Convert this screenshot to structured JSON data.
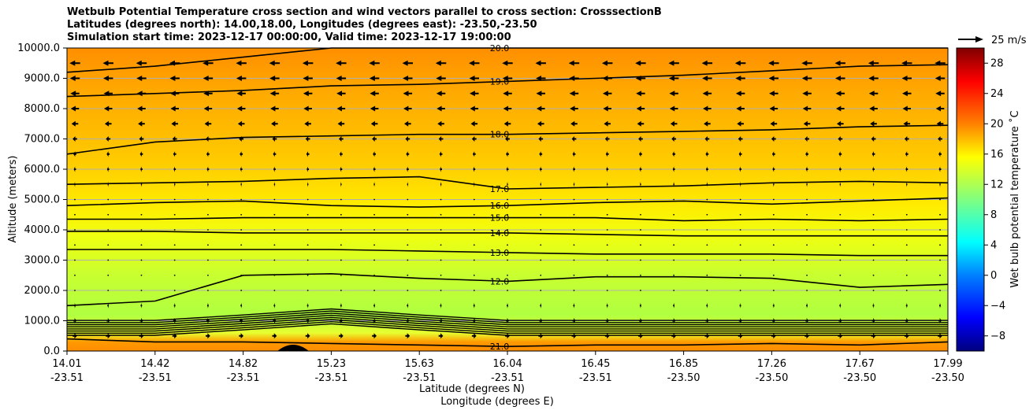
{
  "title_lines": [
    "Wetbulb Potential Temperature cross section and wind vectors parallel to cross section: CrosssectionB",
    "Latitudes (degrees north): 14.00,18.00, Longitudes (degrees east): -23.50,-23.50",
    "Simulation start time: 2023-12-17 00:00:00, Valid time: 2023-12-17 19:00:00"
  ],
  "chart_data": {
    "type": "heatmap",
    "subtype": "cross-section contour with wind vectors",
    "ylabel": "Altitude (meters)",
    "xlabel_1": "Latitude (degrees N)",
    "xlabel_2": "Longitude (degrees E)",
    "ylim": [
      0,
      10000
    ],
    "y_ticks": [
      "0.0",
      "1000.0",
      "2000.0",
      "3000.0",
      "4000.0",
      "5000.0",
      "6000.0",
      "7000.0",
      "8000.0",
      "9000.0",
      "10000.0"
    ],
    "x_ticks": [
      {
        "lat": "14.01",
        "lon": "-23.51"
      },
      {
        "lat": "14.42",
        "lon": "-23.51"
      },
      {
        "lat": "14.82",
        "lon": "-23.51"
      },
      {
        "lat": "15.23",
        "lon": "-23.51"
      },
      {
        "lat": "15.63",
        "lon": "-23.51"
      },
      {
        "lat": "16.04",
        "lon": "-23.51"
      },
      {
        "lat": "16.45",
        "lon": "-23.51"
      },
      {
        "lat": "16.85",
        "lon": "-23.50"
      },
      {
        "lat": "17.26",
        "lon": "-23.50"
      },
      {
        "lat": "17.67",
        "lon": "-23.50"
      },
      {
        "lat": "17.99",
        "lon": "-23.50"
      }
    ],
    "grid": true,
    "colorbar": {
      "label": "Wet bulb potential temperature ˚C",
      "range": [
        -10,
        30
      ],
      "ticks": [
        "−8",
        "−4",
        "0",
        "4",
        "8",
        "12",
        "16",
        "20",
        "24",
        "28"
      ],
      "colormap": "jet"
    },
    "quiver_key": {
      "label": "25 m/s"
    },
    "contours": [
      {
        "value": 20.0,
        "label": "20.0",
        "y_at_lat": [
          9200,
          9400,
          9700,
          10000,
          10000,
          10000,
          10000,
          10000,
          10000,
          10000,
          10000
        ]
      },
      {
        "value": 19.0,
        "label": "19.0",
        "y_at_lat": [
          8400,
          8500,
          8600,
          8750,
          8800,
          8900,
          9000,
          9100,
          9250,
          9400,
          9450
        ]
      },
      {
        "value": 18.0,
        "label": "18.0",
        "y_at_lat": [
          6500,
          6900,
          7050,
          7100,
          7150,
          7150,
          7200,
          7250,
          7300,
          7400,
          7450
        ]
      },
      {
        "value": 17.0,
        "label": "17.0",
        "y_at_lat": [
          5500,
          5550,
          5600,
          5700,
          5750,
          5350,
          5400,
          5450,
          5550,
          5600,
          5550
        ]
      },
      {
        "value": 16.0,
        "label": "16.0",
        "y_at_lat": [
          4800,
          4900,
          4950,
          4800,
          4750,
          4800,
          4900,
          4950,
          4850,
          4950,
          5050
        ]
      },
      {
        "value": 15.0,
        "label": "15.0",
        "y_at_lat": [
          4350,
          4350,
          4400,
          4400,
          4400,
          4400,
          4400,
          4300,
          4350,
          4300,
          4350
        ]
      },
      {
        "value": 14.0,
        "label": "14.0",
        "y_at_lat": [
          3950,
          3950,
          3900,
          3900,
          3900,
          3900,
          3850,
          3800,
          3800,
          3800,
          3800
        ]
      },
      {
        "value": 13.0,
        "label": "13.0",
        "y_at_lat": [
          3350,
          3350,
          3350,
          3350,
          3300,
          3250,
          3200,
          3200,
          3200,
          3150,
          3150
        ]
      },
      {
        "value": 12.0,
        "label": "12.0",
        "y_at_lat": [
          1500,
          1650,
          2500,
          2550,
          2400,
          2300,
          2450,
          2450,
          2400,
          2100,
          2200
        ]
      },
      {
        "value": 21.0,
        "label": "21.0",
        "y_at_lat": [
          400,
          300,
          300,
          250,
          200,
          150,
          200,
          200,
          250,
          200,
          300
        ]
      }
    ],
    "contour_labels": [
      "20.0",
      "19.0",
      "18.0",
      "17.0",
      "16.0",
      "15.0",
      "14.0",
      "13.0",
      "12.0",
      "12.0",
      "12.0",
      "13.0",
      "18.0",
      "18.0",
      "18.0",
      "21.0",
      "21.0",
      "21.0",
      "21.0",
      "21.0",
      "20.0",
      "20.0",
      "20.0",
      "20.0"
    ],
    "wind_u_ms": {
      "altitudes_m": [
        9500,
        9000,
        8500,
        8000,
        7500,
        7000,
        6500,
        6000,
        5500,
        5000,
        4500,
        4000,
        3500,
        3000,
        2500,
        2000,
        1500,
        1000,
        500
      ],
      "u_values": [
        -14,
        -13,
        -12,
        -11,
        -9,
        -6,
        -4,
        -3,
        -1.5,
        -0.5,
        -0.2,
        0,
        0,
        0,
        0.5,
        1,
        2,
        4,
        6
      ]
    }
  }
}
